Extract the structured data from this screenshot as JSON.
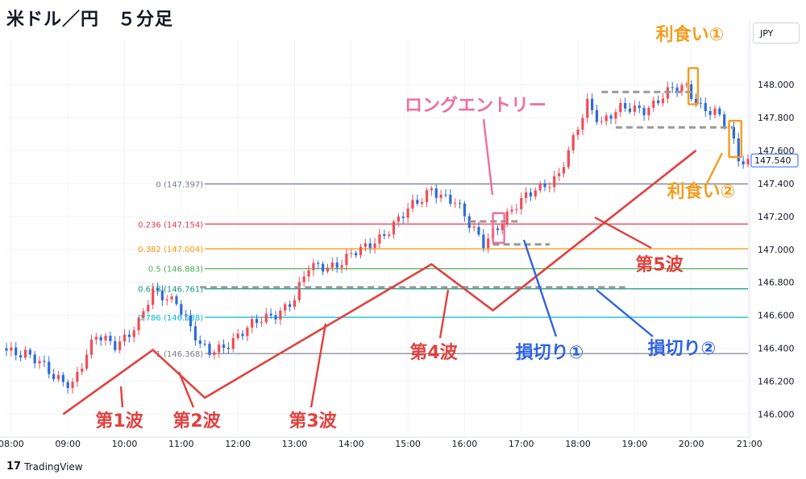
{
  "header": {
    "title": "米ドル／円　５分足",
    "currency_button": "JPY"
  },
  "brand": {
    "logo": "17",
    "name": "TradingView"
  },
  "colors": {
    "up": "#ef4d57",
    "down": "#2e6bd8",
    "wave_line": "#e1413f",
    "orange": "#f59c1c",
    "pink": "#ee6f9d",
    "blue_annot": "#2f63e0",
    "gray_dash": "#999999"
  },
  "chart_data": {
    "type": "candlestick",
    "symbol": "USDJPY",
    "timeframe": "5分足",
    "x_ticks": [
      "08:00",
      "09:00",
      "10:00",
      "11:00",
      "12:00",
      "13:00",
      "14:00",
      "15:00",
      "16:00",
      "17:00",
      "18:00",
      "19:00",
      "20:00",
      "21:00"
    ],
    "x_range": [
      "07:55",
      "21:00"
    ],
    "y_ticks": [
      "148.000",
      "147.800",
      "147.600",
      "147.400",
      "147.200",
      "147.000",
      "146.800",
      "146.600",
      "146.400",
      "146.200",
      "146.000"
    ],
    "ylim": [
      145.9,
      148.22
    ],
    "current_price": "147.540",
    "price_path": [
      [
        "07:55",
        146.4
      ],
      [
        "08:20",
        146.38
      ],
      [
        "08:50",
        146.22
      ],
      [
        "09:10",
        146.2
      ],
      [
        "09:35",
        146.46
      ],
      [
        "09:55",
        146.43
      ],
      [
        "10:20",
        146.55
      ],
      [
        "10:35",
        146.73
      ],
      [
        "11:00",
        146.7
      ],
      [
        "11:15",
        146.52
      ],
      [
        "11:25",
        146.4
      ],
      [
        "11:35",
        146.37
      ],
      [
        "12:00",
        146.46
      ],
      [
        "12:45",
        146.62
      ],
      [
        "13:05",
        146.7
      ],
      [
        "13:20",
        146.88
      ],
      [
        "13:50",
        146.92
      ],
      [
        "14:20",
        147.0
      ],
      [
        "14:50",
        147.16
      ],
      [
        "15:20",
        147.3
      ],
      [
        "15:30",
        147.38
      ],
      [
        "15:55",
        147.28
      ],
      [
        "16:10",
        147.14
      ],
      [
        "16:25",
        147.05
      ],
      [
        "16:35",
        147.12
      ],
      [
        "16:55",
        147.22
      ],
      [
        "17:20",
        147.38
      ],
      [
        "17:45",
        147.44
      ],
      [
        "18:00",
        147.65
      ],
      [
        "18:15",
        147.9
      ],
      [
        "18:30",
        147.78
      ],
      [
        "18:50",
        147.84
      ],
      [
        "19:15",
        147.86
      ],
      [
        "19:45",
        147.96
      ],
      [
        "20:00",
        147.98
      ],
      [
        "20:15",
        147.88
      ],
      [
        "20:30",
        147.83
      ],
      [
        "20:45",
        147.72
      ],
      [
        "20:55",
        147.55
      ],
      [
        "21:00",
        147.54
      ]
    ],
    "fibonacci": {
      "levels": [
        {
          "label": "0 (147.397)",
          "value": 147.397,
          "color": "#787b86"
        },
        {
          "label": "0.236 (147.154)",
          "value": 147.154,
          "color": "#f23645"
        },
        {
          "label": "0.382 (147.004)",
          "value": 147.004,
          "color": "#ff9800"
        },
        {
          "label": "0.5 (146.883)",
          "value": 146.883,
          "color": "#4caf50"
        },
        {
          "label": "0.618 (146.761)",
          "value": 146.761,
          "color": "#089981"
        },
        {
          "label": "0.786 (146.588)",
          "value": 146.588,
          "color": "#00bcd4"
        },
        {
          "label": "1 (146.368)",
          "value": 146.368,
          "color": "#787b86"
        }
      ],
      "start_time": "11:25",
      "end_time": "21:00"
    },
    "waves": [
      {
        "label": "第1波",
        "from": [
          "08:55",
          146.0
        ],
        "to": [
          "10:30",
          146.39
        ]
      },
      {
        "label": "第2波",
        "from": [
          "10:30",
          146.39
        ],
        "to": [
          "11:25",
          146.1
        ]
      },
      {
        "label": "第3波",
        "from": [
          "11:25",
          146.1
        ],
        "to": [
          "15:25",
          146.91
        ]
      },
      {
        "label": "第4波",
        "from": [
          "15:25",
          146.91
        ],
        "to": [
          "16:30",
          146.63
        ]
      },
      {
        "label": "第5波",
        "from": [
          "16:30",
          146.63
        ],
        "to": [
          "20:05",
          147.6
        ]
      }
    ],
    "annotations": [
      {
        "label": "ロングエントリー",
        "color": "pink"
      },
      {
        "label": "利食い①",
        "color": "orange"
      },
      {
        "label": "利食い②",
        "color": "orange"
      },
      {
        "label": "損切り①",
        "color": "blue"
      },
      {
        "label": "損切り②",
        "color": "blue"
      },
      {
        "label": "第1波",
        "color": "red"
      },
      {
        "label": "第2波",
        "color": "red"
      },
      {
        "label": "第3波",
        "color": "red"
      },
      {
        "label": "第4波",
        "color": "red"
      },
      {
        "label": "第5波",
        "color": "red"
      }
    ],
    "stop_levels": [
      {
        "name": "損切り①",
        "value": 147.03
      },
      {
        "name": "損切り②",
        "value": 146.77
      }
    ],
    "consolidation_levels": [
      147.74,
      147.955,
      147.17
    ]
  }
}
